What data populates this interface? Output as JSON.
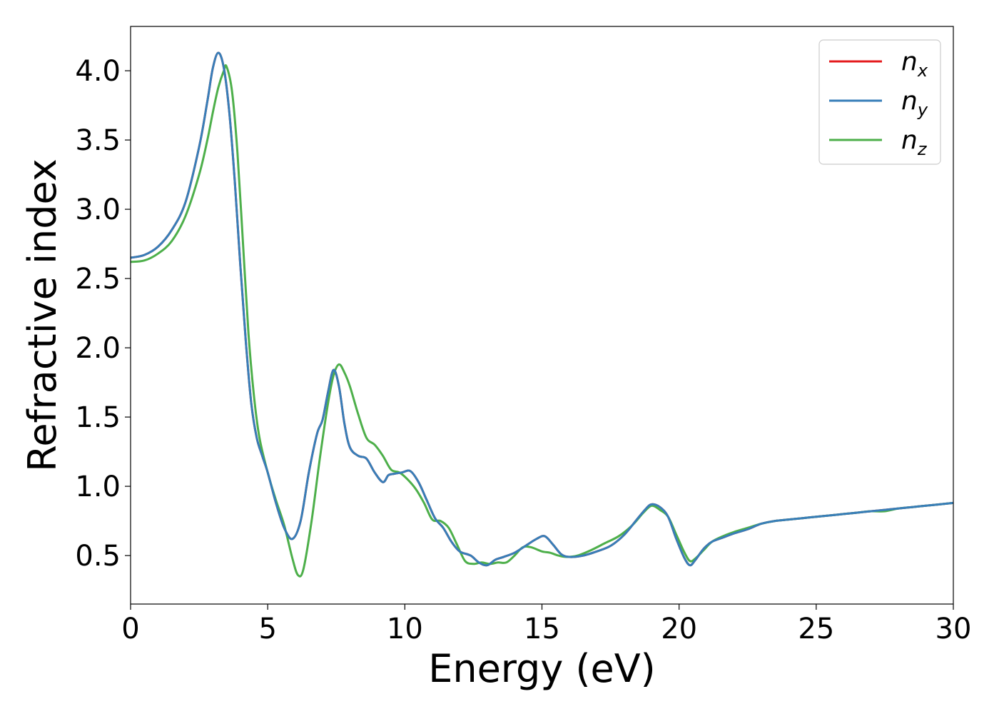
{
  "chart_data": {
    "type": "line",
    "title": "",
    "xlabel": "Energy (eV)",
    "ylabel": "Refractive index",
    "xlim": [
      0,
      30
    ],
    "ylim": [
      0.15,
      4.32
    ],
    "xticks": [
      0,
      5,
      10,
      15,
      20,
      25,
      30
    ],
    "yticks": [
      0.5,
      1.0,
      1.5,
      2.0,
      2.5,
      3.0,
      3.5,
      4.0
    ],
    "xtick_labels": [
      "0",
      "5",
      "10",
      "15",
      "20",
      "25",
      "30"
    ],
    "ytick_labels": [
      "0.5",
      "1.0",
      "1.5",
      "2.0",
      "2.5",
      "3.0",
      "3.5",
      "4.0"
    ],
    "grid": false,
    "legend_position": "top-right",
    "series": [
      {
        "name": "n",
        "subscript": "x",
        "color": "#e41a1c",
        "x": [
          0,
          0.5,
          1.0,
          1.5,
          2.0,
          2.5,
          2.8,
          3.0,
          3.2,
          3.4,
          3.6,
          3.8,
          4.0,
          4.2,
          4.4,
          4.6,
          4.8,
          5.0,
          5.3,
          5.6,
          5.9,
          6.2,
          6.5,
          6.8,
          7.0,
          7.2,
          7.4,
          7.6,
          7.8,
          8.0,
          8.3,
          8.6,
          8.9,
          9.2,
          9.4,
          9.6,
          9.9,
          10.2,
          10.5,
          10.8,
          11.1,
          11.4,
          11.7,
          12.0,
          12.4,
          12.7,
          13.0,
          13.3,
          13.6,
          14.0,
          14.4,
          14.8,
          15.1,
          15.4,
          15.7,
          16.0,
          16.5,
          17.0,
          17.5,
          18.0,
          18.5,
          18.8,
          19.0,
          19.3,
          19.6,
          19.9,
          20.2,
          20.4,
          20.6,
          20.9,
          21.2,
          21.6,
          22.0,
          22.5,
          23.0,
          23.5,
          24.0,
          24.5,
          25.0,
          25.5,
          26.0,
          26.5,
          27.0,
          27.5,
          28.0,
          28.5,
          29.0,
          29.5,
          30.0
        ],
        "y": [
          2.65,
          2.67,
          2.73,
          2.85,
          3.05,
          3.45,
          3.78,
          4.02,
          4.13,
          4.02,
          3.7,
          3.2,
          2.6,
          2.05,
          1.6,
          1.35,
          1.22,
          1.1,
          0.88,
          0.7,
          0.62,
          0.75,
          1.1,
          1.38,
          1.48,
          1.68,
          1.84,
          1.72,
          1.45,
          1.28,
          1.22,
          1.2,
          1.1,
          1.03,
          1.08,
          1.09,
          1.1,
          1.11,
          1.03,
          0.9,
          0.77,
          0.7,
          0.6,
          0.53,
          0.5,
          0.45,
          0.43,
          0.47,
          0.49,
          0.52,
          0.57,
          0.62,
          0.64,
          0.58,
          0.51,
          0.49,
          0.5,
          0.53,
          0.57,
          0.65,
          0.77,
          0.84,
          0.87,
          0.85,
          0.78,
          0.62,
          0.48,
          0.43,
          0.47,
          0.55,
          0.6,
          0.63,
          0.66,
          0.69,
          0.73,
          0.75,
          0.76,
          0.77,
          0.78,
          0.79,
          0.8,
          0.81,
          0.82,
          0.83,
          0.84,
          0.85,
          0.86,
          0.87,
          0.88
        ]
      },
      {
        "name": "n",
        "subscript": "y",
        "color": "#377eb8",
        "x": [
          0,
          0.5,
          1.0,
          1.5,
          2.0,
          2.5,
          2.8,
          3.0,
          3.2,
          3.4,
          3.6,
          3.8,
          4.0,
          4.2,
          4.4,
          4.6,
          4.8,
          5.0,
          5.3,
          5.6,
          5.9,
          6.2,
          6.5,
          6.8,
          7.0,
          7.2,
          7.4,
          7.6,
          7.8,
          8.0,
          8.3,
          8.6,
          8.9,
          9.2,
          9.4,
          9.6,
          9.9,
          10.2,
          10.5,
          10.8,
          11.1,
          11.4,
          11.7,
          12.0,
          12.4,
          12.7,
          13.0,
          13.3,
          13.6,
          14.0,
          14.4,
          14.8,
          15.1,
          15.4,
          15.7,
          16.0,
          16.5,
          17.0,
          17.5,
          18.0,
          18.5,
          18.8,
          19.0,
          19.3,
          19.6,
          19.9,
          20.2,
          20.4,
          20.6,
          20.9,
          21.2,
          21.6,
          22.0,
          22.5,
          23.0,
          23.5,
          24.0,
          24.5,
          25.0,
          25.5,
          26.0,
          26.5,
          27.0,
          27.5,
          28.0,
          28.5,
          29.0,
          29.5,
          30.0
        ],
        "y": [
          2.65,
          2.67,
          2.73,
          2.85,
          3.05,
          3.45,
          3.78,
          4.02,
          4.13,
          4.02,
          3.7,
          3.2,
          2.6,
          2.05,
          1.6,
          1.35,
          1.22,
          1.1,
          0.88,
          0.7,
          0.62,
          0.75,
          1.1,
          1.38,
          1.48,
          1.68,
          1.84,
          1.72,
          1.45,
          1.28,
          1.22,
          1.2,
          1.1,
          1.03,
          1.08,
          1.09,
          1.1,
          1.11,
          1.03,
          0.9,
          0.77,
          0.7,
          0.6,
          0.53,
          0.5,
          0.45,
          0.43,
          0.47,
          0.49,
          0.52,
          0.57,
          0.62,
          0.64,
          0.58,
          0.51,
          0.49,
          0.5,
          0.53,
          0.57,
          0.65,
          0.77,
          0.84,
          0.87,
          0.85,
          0.78,
          0.62,
          0.48,
          0.43,
          0.47,
          0.55,
          0.6,
          0.63,
          0.66,
          0.69,
          0.73,
          0.75,
          0.76,
          0.77,
          0.78,
          0.79,
          0.8,
          0.81,
          0.82,
          0.83,
          0.84,
          0.85,
          0.86,
          0.87,
          0.88
        ]
      },
      {
        "name": "n",
        "subscript": "z",
        "color": "#4daf4a",
        "x": [
          0,
          0.5,
          1.0,
          1.5,
          2.0,
          2.5,
          2.8,
          3.0,
          3.2,
          3.4,
          3.5,
          3.7,
          3.9,
          4.1,
          4.3,
          4.5,
          4.7,
          5.0,
          5.3,
          5.6,
          5.9,
          6.1,
          6.3,
          6.6,
          6.9,
          7.2,
          7.4,
          7.6,
          7.8,
          8.0,
          8.3,
          8.6,
          8.9,
          9.2,
          9.5,
          9.8,
          10.1,
          10.4,
          10.7,
          11.0,
          11.3,
          11.6,
          11.9,
          12.2,
          12.5,
          12.8,
          13.1,
          13.4,
          13.7,
          14.0,
          14.3,
          14.6,
          15.0,
          15.3,
          15.6,
          15.9,
          16.3,
          16.8,
          17.3,
          17.8,
          18.3,
          18.7,
          19.0,
          19.3,
          19.6,
          19.9,
          20.2,
          20.4,
          20.6,
          20.9,
          21.2,
          21.6,
          22.0,
          22.5,
          23.0,
          23.5,
          24.0,
          24.5,
          25.0,
          25.5,
          26.0,
          26.5,
          27.0,
          27.5,
          28.0,
          28.5,
          29.0,
          29.5,
          30.0
        ],
        "y": [
          2.62,
          2.63,
          2.68,
          2.77,
          2.95,
          3.25,
          3.5,
          3.7,
          3.88,
          4.0,
          4.03,
          3.85,
          3.4,
          2.75,
          2.1,
          1.65,
          1.35,
          1.1,
          0.9,
          0.72,
          0.48,
          0.36,
          0.4,
          0.75,
          1.2,
          1.6,
          1.8,
          1.88,
          1.82,
          1.72,
          1.52,
          1.35,
          1.3,
          1.22,
          1.12,
          1.1,
          1.05,
          0.98,
          0.88,
          0.76,
          0.75,
          0.7,
          0.58,
          0.46,
          0.44,
          0.45,
          0.44,
          0.45,
          0.45,
          0.5,
          0.56,
          0.56,
          0.53,
          0.52,
          0.5,
          0.49,
          0.5,
          0.54,
          0.59,
          0.64,
          0.72,
          0.81,
          0.86,
          0.83,
          0.78,
          0.65,
          0.52,
          0.46,
          0.48,
          0.54,
          0.6,
          0.64,
          0.67,
          0.7,
          0.73,
          0.75,
          0.76,
          0.77,
          0.78,
          0.79,
          0.8,
          0.81,
          0.82,
          0.82,
          0.84,
          0.85,
          0.86,
          0.87,
          0.88
        ]
      }
    ]
  }
}
